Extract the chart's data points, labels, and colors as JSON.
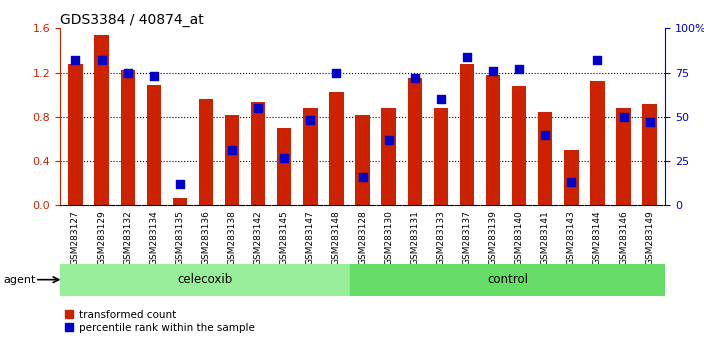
{
  "title": "GDS3384 / 40874_at",
  "samples": [
    "GSM283127",
    "GSM283129",
    "GSM283132",
    "GSM283134",
    "GSM283135",
    "GSM283136",
    "GSM283138",
    "GSM283142",
    "GSM283145",
    "GSM283147",
    "GSM283148",
    "GSM283128",
    "GSM283130",
    "GSM283131",
    "GSM283133",
    "GSM283137",
    "GSM283139",
    "GSM283140",
    "GSM283141",
    "GSM283143",
    "GSM283144",
    "GSM283146",
    "GSM283149"
  ],
  "red_values": [
    1.28,
    1.54,
    1.22,
    1.09,
    0.07,
    0.96,
    0.82,
    0.93,
    0.7,
    0.88,
    1.02,
    0.82,
    0.88,
    1.15,
    0.88,
    1.28,
    1.18,
    1.08,
    0.84,
    0.5,
    1.12,
    0.88,
    0.92
  ],
  "blue_values_pct": [
    82,
    82,
    75,
    73,
    12,
    null,
    31,
    55,
    27,
    48,
    75,
    16,
    37,
    72,
    60,
    84,
    76,
    77,
    40,
    13,
    82,
    50,
    47
  ],
  "celecoxib_count": 11,
  "control_count": 12,
  "ylim_left": [
    0,
    1.6
  ],
  "ylim_right": [
    0,
    100
  ],
  "yticks_left": [
    0,
    0.4,
    0.8,
    1.2,
    1.6
  ],
  "yticks_right": [
    0,
    25,
    50,
    75,
    100
  ],
  "bar_color": "#cc2200",
  "dot_color": "#0000cc",
  "celecoxib_color": "#99ee99",
  "control_color": "#66dd66",
  "xticklabel_bg": "#cccccc",
  "bar_width": 0.55,
  "dot_size": 28,
  "title_fontsize": 10,
  "tick_fontsize": 6.5,
  "legend_fontsize": 7.5,
  "agent_fontsize": 8.5,
  "agent_label_fontsize": 8
}
